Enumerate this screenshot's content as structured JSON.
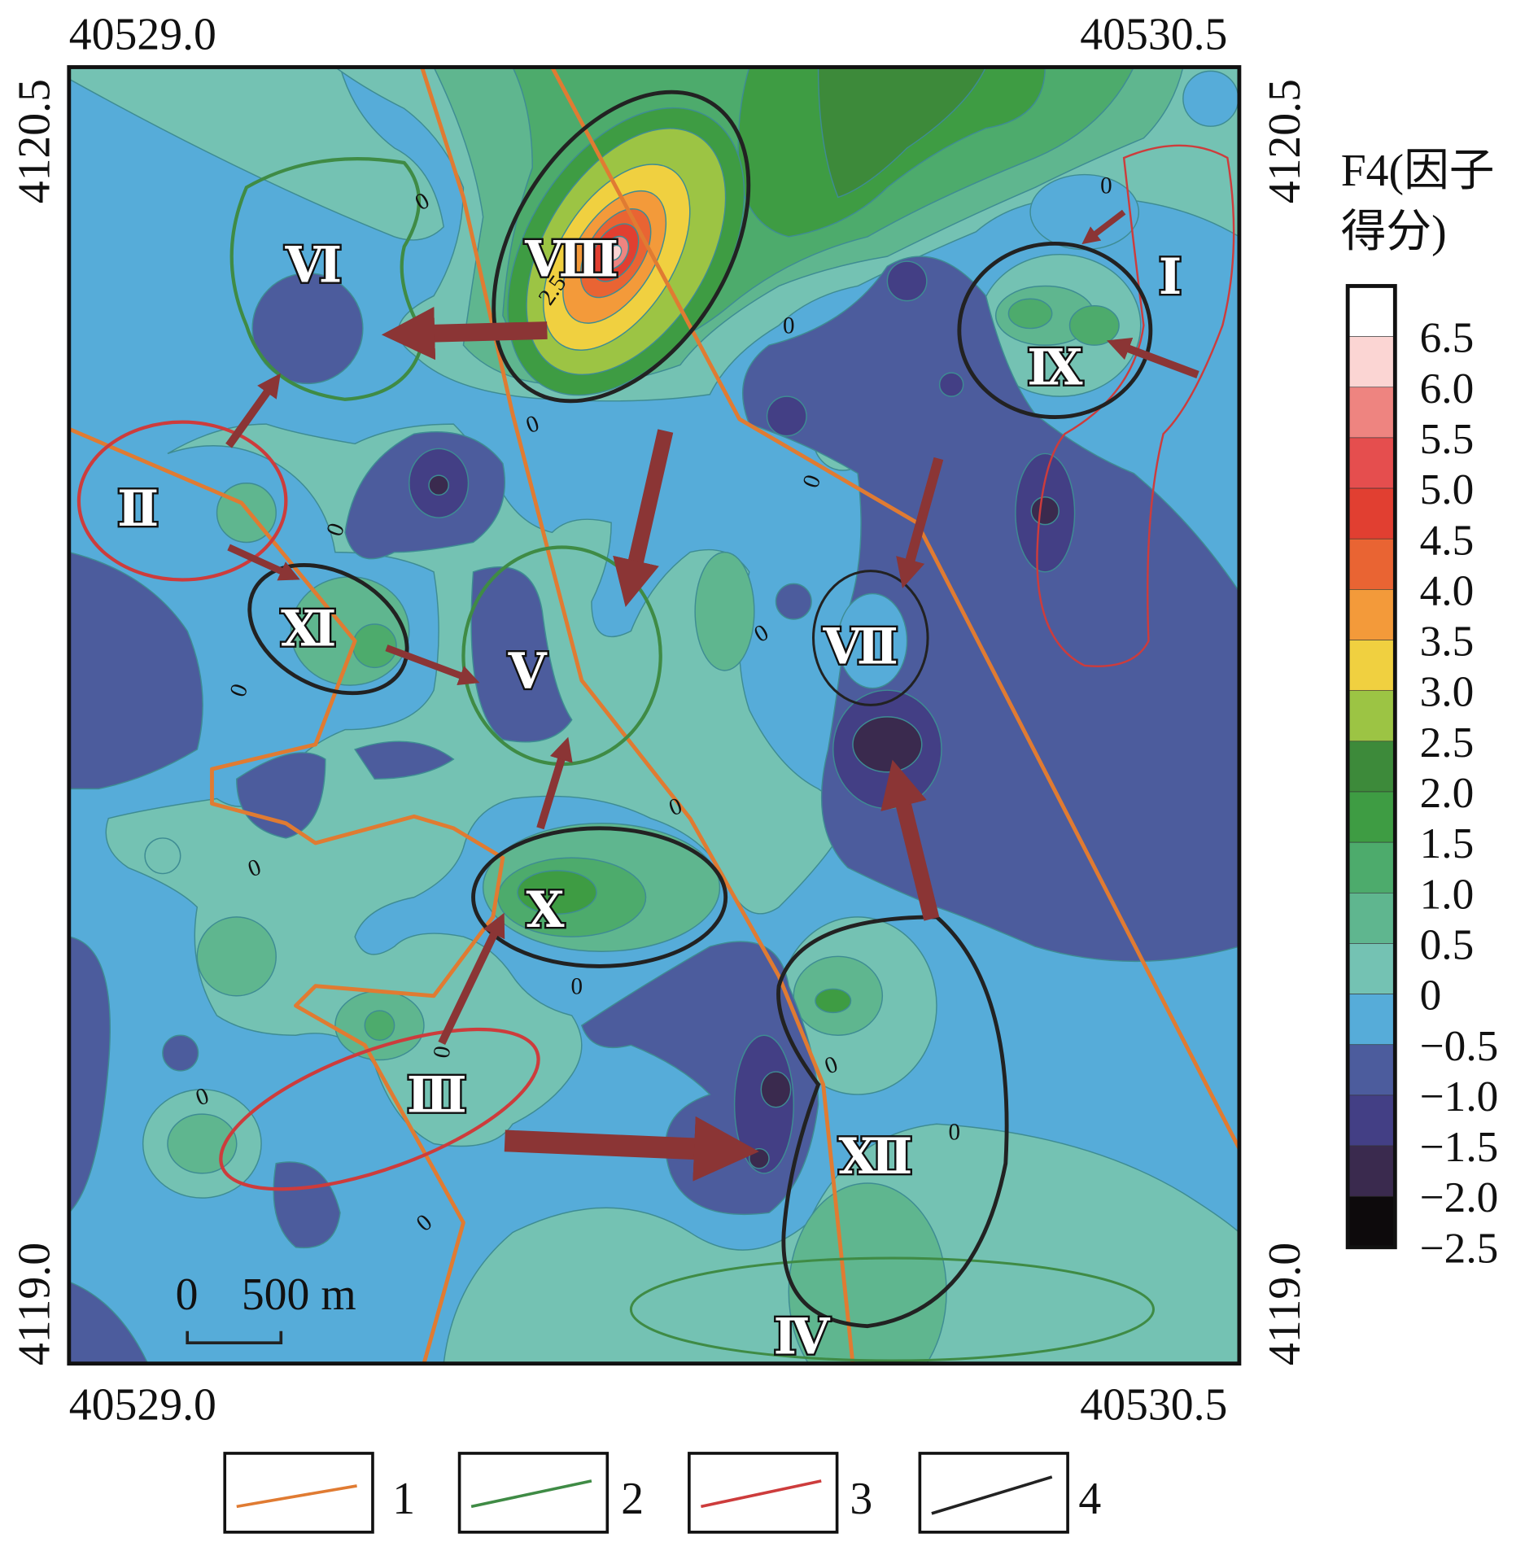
{
  "coordinates": {
    "top_left_x": "40529.0",
    "top_right_x": "40530.5",
    "bottom_left_x": "40529.0",
    "bottom_right_x": "40530.5",
    "left_top_y": "4120.5",
    "left_bottom_y": "4119.0",
    "right_top_y": "4120.5",
    "right_bottom_y": "4119.0"
  },
  "colorbar": {
    "title_line1": "F4(因子",
    "title_line2": "得分)",
    "labels": [
      "6.5",
      "6.0",
      "5.5",
      "5.0",
      "4.5",
      "4.0",
      "3.5",
      "3.0",
      "2.5",
      "2.0",
      "1.5",
      "1.0",
      "0.5",
      "0",
      "−0.5",
      "−1.0",
      "−1.5",
      "−2.0",
      "−2.5"
    ]
  },
  "zones": [
    "Ⅰ",
    "Ⅱ",
    "Ⅲ",
    "Ⅳ",
    "Ⅴ",
    "Ⅵ",
    "Ⅶ",
    "Ⅷ",
    "Ⅸ",
    "Ⅹ",
    "Ⅺ",
    "Ⅻ"
  ],
  "contour_labels": [
    "2.5",
    "0",
    "0",
    "0",
    "0",
    "0",
    "0",
    "0",
    "0",
    "0",
    "0",
    "0",
    "0",
    "0",
    "0",
    "0",
    "0"
  ],
  "scale_bar": {
    "start": "0",
    "length": "500 m"
  },
  "legend": [
    "1",
    "2",
    "3",
    "4"
  ]
}
